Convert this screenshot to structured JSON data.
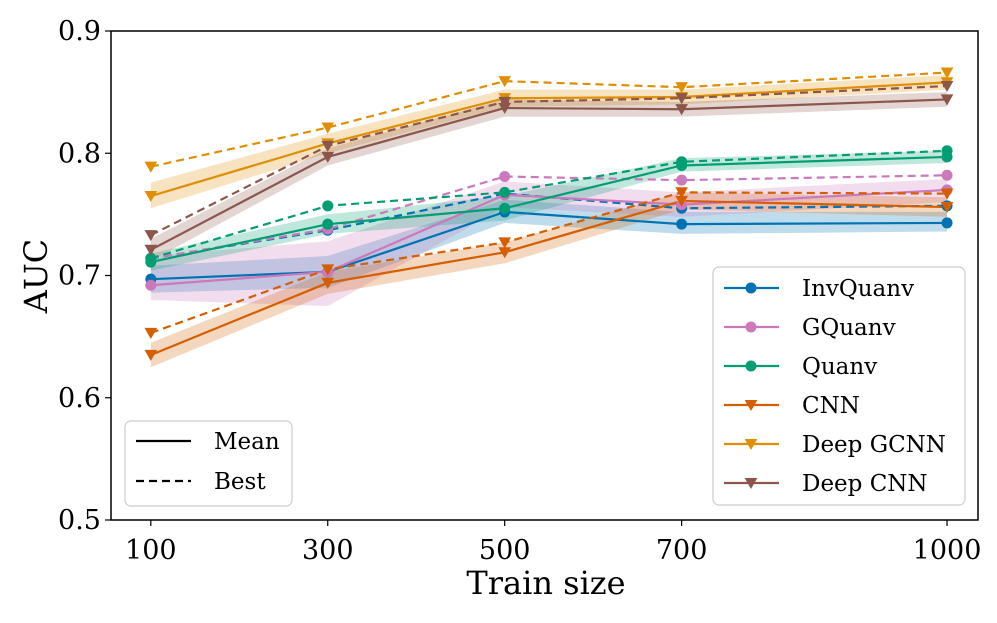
{
  "chart_data": {
    "type": "line",
    "title": "",
    "xlabel": "Train size",
    "ylabel": "AUC",
    "x": [
      100,
      300,
      500,
      700,
      1000
    ],
    "x_tick_labels": [
      "100",
      "300",
      "500",
      "700",
      "1000"
    ],
    "xlim": [
      55,
      1035
    ],
    "ylim": [
      0.5,
      0.9
    ],
    "y_ticks": [
      0.5,
      0.6,
      0.7,
      0.8,
      0.9
    ],
    "y_tick_labels": [
      "0.5",
      "0.6",
      "0.7",
      "0.8",
      "0.9"
    ],
    "series": [
      {
        "name": "InvQuanv",
        "color": "#0173b2",
        "marker": "circle",
        "mean": [
          0.697,
          0.703,
          0.752,
          0.742,
          0.743
        ],
        "best": [
          0.714,
          0.737,
          0.767,
          0.755,
          0.757
        ],
        "band_low": [
          0.686,
          0.69,
          0.743,
          0.734,
          0.736
        ],
        "band_high": [
          0.708,
          0.716,
          0.762,
          0.752,
          0.752
        ]
      },
      {
        "name": "GQuanv",
        "color": "#cc78bc",
        "marker": "circle",
        "mean": [
          0.692,
          0.703,
          0.766,
          0.758,
          0.77
        ],
        "best": [
          0.714,
          0.738,
          0.781,
          0.778,
          0.782
        ],
        "band_low": [
          0.68,
          0.675,
          0.756,
          0.748,
          0.76
        ],
        "band_high": [
          0.716,
          0.728,
          0.777,
          0.768,
          0.779
        ]
      },
      {
        "name": "Quanv",
        "color": "#029e73",
        "marker": "circle",
        "mean": [
          0.711,
          0.742,
          0.755,
          0.79,
          0.797
        ],
        "best": [
          0.714,
          0.757,
          0.768,
          0.793,
          0.802
        ],
        "band_low": [
          0.704,
          0.734,
          0.745,
          0.785,
          0.792
        ],
        "band_high": [
          0.718,
          0.75,
          0.765,
          0.796,
          0.802
        ]
      },
      {
        "name": "CNN",
        "color": "#d55e00",
        "marker": "triangle-down",
        "mean": [
          0.635,
          0.694,
          0.719,
          0.761,
          0.756
        ],
        "best": [
          0.653,
          0.705,
          0.727,
          0.768,
          0.767
        ],
        "band_low": [
          0.625,
          0.685,
          0.71,
          0.754,
          0.748
        ],
        "band_high": [
          0.645,
          0.703,
          0.727,
          0.768,
          0.764
        ]
      },
      {
        "name": "Deep GCNN",
        "color": "#de8f05",
        "marker": "triangle-down",
        "mean": [
          0.765,
          0.808,
          0.845,
          0.846,
          0.858
        ],
        "best": [
          0.789,
          0.821,
          0.859,
          0.854,
          0.866
        ],
        "band_low": [
          0.755,
          0.8,
          0.838,
          0.84,
          0.852
        ],
        "band_high": [
          0.776,
          0.816,
          0.852,
          0.852,
          0.864
        ]
      },
      {
        "name": "Deep CNN",
        "color": "#8c564b",
        "marker": "triangle-down",
        "mean": [
          0.721,
          0.797,
          0.837,
          0.836,
          0.844
        ],
        "best": [
          0.733,
          0.806,
          0.842,
          0.845,
          0.855
        ],
        "band_low": [
          0.712,
          0.79,
          0.83,
          0.83,
          0.838
        ],
        "band_high": [
          0.73,
          0.804,
          0.844,
          0.842,
          0.85
        ]
      }
    ],
    "style_legend": [
      {
        "label": "Mean",
        "style": "solid"
      },
      {
        "label": "Best",
        "style": "dashed"
      }
    ],
    "series_legend_position": "bottom-right",
    "style_legend_position": "bottom-left",
    "grid": false
  }
}
